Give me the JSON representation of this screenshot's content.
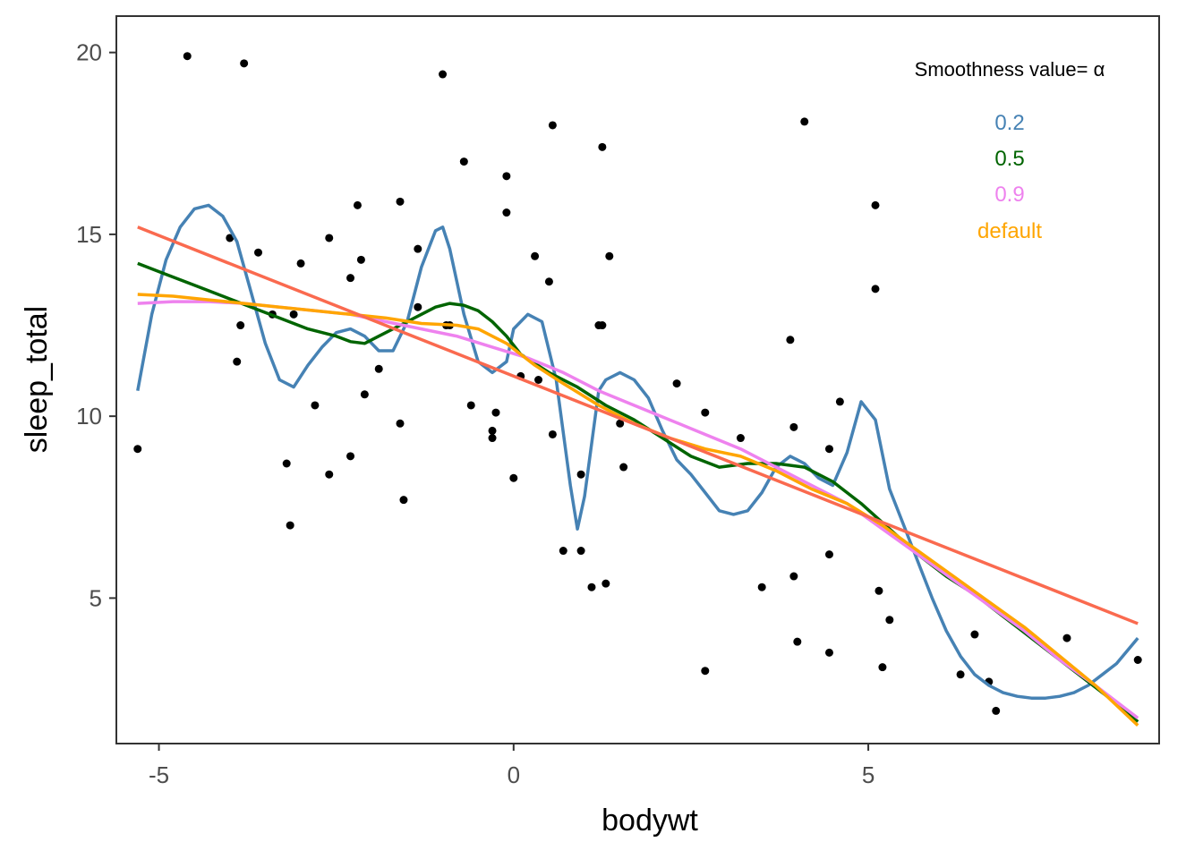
{
  "chart_data": {
    "type": "scatter",
    "xlabel": "bodywt",
    "ylabel": "sleep_total",
    "xlim": [
      -5.6,
      9.1
    ],
    "ylim": [
      1.0,
      21.0
    ],
    "x_ticks": [
      -5,
      0,
      5
    ],
    "y_ticks": [
      5,
      10,
      15,
      20
    ],
    "x_tick_labels": [
      "-5",
      "0",
      "5"
    ],
    "y_tick_labels": [
      "5",
      "10",
      "15",
      "20"
    ],
    "grid": false,
    "legend": {
      "title": "Smoothness value= α",
      "placement": "top-right",
      "entries": [
        {
          "label": "0.2",
          "color": "#4682b4"
        },
        {
          "label": "0.5",
          "color": "#006400"
        },
        {
          "label": "0.9",
          "color": "#ee82ee"
        },
        {
          "label": "default",
          "color": "#ffa500"
        }
      ]
    },
    "points": [
      [
        -5.3,
        9.1
      ],
      [
        -4.6,
        19.9
      ],
      [
        -3.8,
        19.7
      ],
      [
        -4.0,
        14.9
      ],
      [
        -3.6,
        14.5
      ],
      [
        -3.85,
        12.5
      ],
      [
        -3.9,
        11.5
      ],
      [
        -3.4,
        12.8
      ],
      [
        -3.1,
        12.8
      ],
      [
        -3.2,
        8.7
      ],
      [
        -3.15,
        7.0
      ],
      [
        -3.0,
        14.2
      ],
      [
        -2.8,
        10.3
      ],
      [
        -2.6,
        14.9
      ],
      [
        -2.6,
        8.4
      ],
      [
        -2.3,
        13.8
      ],
      [
        -2.3,
        8.9
      ],
      [
        -2.2,
        15.8
      ],
      [
        -2.15,
        14.3
      ],
      [
        -2.1,
        10.6
      ],
      [
        -1.9,
        11.3
      ],
      [
        -1.6,
        15.9
      ],
      [
        -1.6,
        9.8
      ],
      [
        -1.55,
        7.7
      ],
      [
        -1.35,
        13.0
      ],
      [
        -1.35,
        14.6
      ],
      [
        -1.0,
        19.4
      ],
      [
        -0.9,
        12.5
      ],
      [
        -0.95,
        12.5
      ],
      [
        -0.7,
        17.0
      ],
      [
        -0.6,
        10.3
      ],
      [
        -0.3,
        9.6
      ],
      [
        -0.3,
        9.4
      ],
      [
        -0.25,
        10.1
      ],
      [
        -0.1,
        16.6
      ],
      [
        -0.1,
        15.6
      ],
      [
        0.0,
        8.3
      ],
      [
        0.1,
        11.1
      ],
      [
        0.3,
        14.4
      ],
      [
        0.35,
        11.0
      ],
      [
        0.5,
        13.7
      ],
      [
        0.55,
        9.5
      ],
      [
        0.55,
        18.0
      ],
      [
        0.7,
        6.3
      ],
      [
        0.95,
        6.3
      ],
      [
        0.95,
        8.4
      ],
      [
        1.1,
        5.3
      ],
      [
        1.2,
        12.5
      ],
      [
        1.25,
        17.4
      ],
      [
        1.25,
        12.5
      ],
      [
        1.3,
        5.4
      ],
      [
        1.35,
        14.4
      ],
      [
        1.5,
        9.8
      ],
      [
        1.55,
        8.6
      ],
      [
        2.3,
        10.9
      ],
      [
        2.7,
        10.1
      ],
      [
        2.7,
        3.0
      ],
      [
        3.2,
        9.4
      ],
      [
        3.5,
        5.3
      ],
      [
        3.9,
        12.1
      ],
      [
        3.95,
        9.7
      ],
      [
        3.95,
        5.6
      ],
      [
        4.0,
        3.8
      ],
      [
        4.1,
        18.1
      ],
      [
        4.45,
        3.5
      ],
      [
        4.45,
        6.2
      ],
      [
        4.45,
        9.1
      ],
      [
        4.6,
        10.4
      ],
      [
        5.1,
        15.8
      ],
      [
        5.1,
        13.5
      ],
      [
        5.15,
        5.2
      ],
      [
        5.2,
        3.1
      ],
      [
        5.3,
        4.4
      ],
      [
        6.3,
        2.9
      ],
      [
        6.5,
        4.0
      ],
      [
        6.7,
        2.7
      ],
      [
        6.8,
        1.9
      ],
      [
        7.8,
        3.9
      ],
      [
        8.8,
        3.3
      ]
    ],
    "series": [
      {
        "name": "0.2",
        "color": "#4682b4",
        "x": [
          -5.3,
          -5.1,
          -4.9,
          -4.7,
          -4.5,
          -4.3,
          -4.1,
          -3.9,
          -3.7,
          -3.5,
          -3.3,
          -3.1,
          -2.9,
          -2.7,
          -2.5,
          -2.3,
          -2.1,
          -1.9,
          -1.7,
          -1.5,
          -1.3,
          -1.1,
          -1.0,
          -0.9,
          -0.7,
          -0.5,
          -0.3,
          -0.1,
          0.0,
          0.2,
          0.4,
          0.6,
          0.8,
          0.9,
          1.0,
          1.2,
          1.3,
          1.5,
          1.7,
          1.9,
          2.1,
          2.3,
          2.5,
          2.7,
          2.9,
          3.1,
          3.3,
          3.5,
          3.7,
          3.9,
          4.1,
          4.3,
          4.5,
          4.7,
          4.9,
          5.1,
          5.3,
          5.5,
          5.7,
          5.9,
          6.1,
          6.3,
          6.5,
          6.7,
          6.9,
          7.1,
          7.3,
          7.5,
          7.7,
          7.9,
          8.1,
          8.3,
          8.5,
          8.8
        ],
        "y": [
          10.7,
          12.8,
          14.3,
          15.2,
          15.7,
          15.8,
          15.5,
          14.8,
          13.4,
          12.0,
          11.0,
          10.8,
          11.4,
          11.9,
          12.3,
          12.4,
          12.2,
          11.8,
          11.8,
          12.6,
          14.1,
          15.1,
          15.2,
          14.6,
          12.8,
          11.5,
          11.2,
          11.5,
          12.4,
          12.8,
          12.6,
          11.0,
          8.1,
          6.9,
          7.8,
          10.7,
          11.0,
          11.2,
          11.0,
          10.5,
          9.6,
          8.8,
          8.4,
          7.9,
          7.4,
          7.3,
          7.4,
          7.9,
          8.6,
          8.9,
          8.7,
          8.3,
          8.1,
          9.0,
          10.4,
          9.9,
          8.0,
          7.0,
          6.0,
          5.0,
          4.1,
          3.4,
          2.9,
          2.6,
          2.4,
          2.3,
          2.25,
          2.25,
          2.3,
          2.4,
          2.6,
          2.9,
          3.2,
          3.9
        ]
      },
      {
        "name": "0.5",
        "color": "#006400",
        "x": [
          -5.3,
          -4.9,
          -4.5,
          -4.1,
          -3.7,
          -3.3,
          -2.9,
          -2.5,
          -2.3,
          -2.1,
          -1.9,
          -1.7,
          -1.5,
          -1.3,
          -1.1,
          -0.9,
          -0.7,
          -0.5,
          -0.3,
          -0.1,
          0.1,
          0.5,
          0.9,
          1.3,
          1.7,
          2.1,
          2.5,
          2.9,
          3.3,
          3.7,
          4.1,
          4.5,
          4.9,
          5.3,
          5.7,
          6.1,
          6.5,
          6.9,
          7.3,
          7.7,
          8.1,
          8.5,
          8.8
        ],
        "y": [
          14.2,
          13.9,
          13.6,
          13.3,
          13.0,
          12.7,
          12.4,
          12.2,
          12.05,
          12.0,
          12.2,
          12.4,
          12.6,
          12.8,
          13.0,
          13.1,
          13.05,
          12.9,
          12.6,
          12.2,
          11.7,
          11.2,
          10.8,
          10.3,
          9.9,
          9.4,
          8.9,
          8.6,
          8.7,
          8.7,
          8.6,
          8.2,
          7.6,
          6.9,
          6.2,
          5.6,
          5.1,
          4.5,
          3.9,
          3.3,
          2.7,
          2.1,
          1.6
        ]
      },
      {
        "name": "0.9",
        "color": "#ee82ee",
        "x": [
          -5.3,
          -4.8,
          -4.3,
          -3.8,
          -3.3,
          -2.8,
          -2.3,
          -1.8,
          -1.3,
          -0.8,
          -0.3,
          0.2,
          0.7,
          1.2,
          1.7,
          2.2,
          2.7,
          3.2,
          3.7,
          4.2,
          4.7,
          5.2,
          5.7,
          6.2,
          6.7,
          7.2,
          7.7,
          8.2,
          8.8
        ],
        "y": [
          13.1,
          13.15,
          13.15,
          13.1,
          13.0,
          12.9,
          12.8,
          12.6,
          12.4,
          12.2,
          11.9,
          11.6,
          11.2,
          10.7,
          10.3,
          9.9,
          9.5,
          9.1,
          8.6,
          8.1,
          7.6,
          6.9,
          6.2,
          5.5,
          4.8,
          4.1,
          3.3,
          2.6,
          1.7
        ]
      },
      {
        "name": "default",
        "color": "#ffa500",
        "x": [
          -5.3,
          -4.8,
          -4.3,
          -3.8,
          -3.3,
          -2.8,
          -2.3,
          -1.8,
          -1.3,
          -0.8,
          -0.5,
          -0.3,
          -0.1,
          0.1,
          0.3,
          0.7,
          1.2,
          1.7,
          2.2,
          2.7,
          3.2,
          3.7,
          4.2,
          4.7,
          5.2,
          5.7,
          6.2,
          6.7,
          7.2,
          7.7,
          8.2,
          8.8
        ],
        "y": [
          13.35,
          13.3,
          13.2,
          13.1,
          13.0,
          12.9,
          12.8,
          12.7,
          12.55,
          12.5,
          12.4,
          12.2,
          12.0,
          11.7,
          11.4,
          10.9,
          10.3,
          9.8,
          9.4,
          9.1,
          8.9,
          8.5,
          8.0,
          7.6,
          7.0,
          6.3,
          5.6,
          4.9,
          4.2,
          3.4,
          2.6,
          1.5
        ]
      },
      {
        "color": "#fa6a4f",
        "x": [
          -5.3,
          8.8
        ],
        "y": [
          15.2,
          4.3
        ]
      }
    ]
  }
}
